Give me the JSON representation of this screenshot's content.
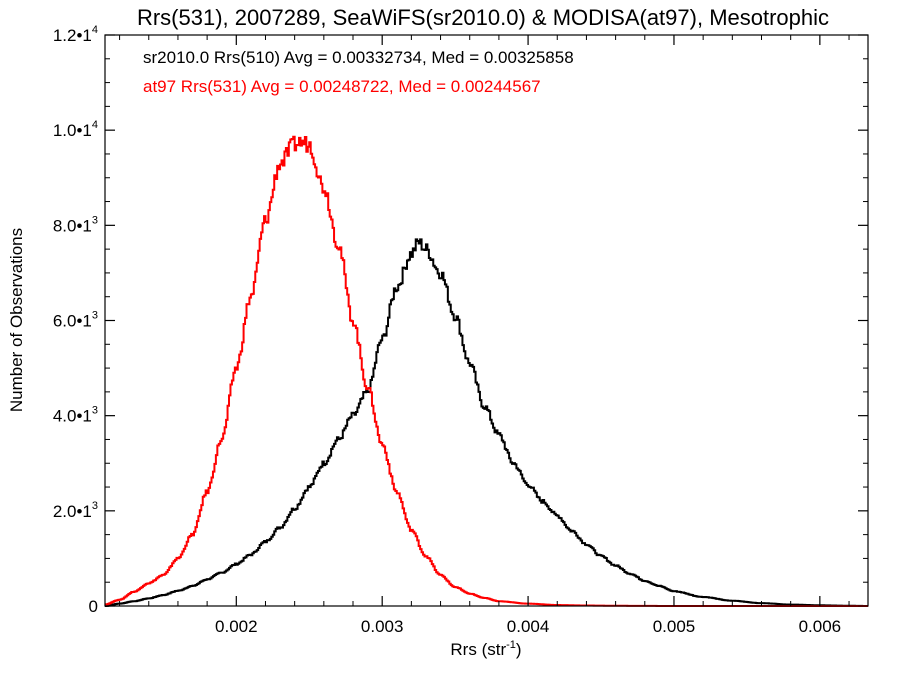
{
  "chart_data": {
    "type": "histogram",
    "title": "Rrs(531), 2007289, SeaWiFS(sr2010.0) & MODISA(at97), Mesotrophic",
    "xlabel": {
      "base": "Rrs (str",
      "sup": "-1",
      "close": ")"
    },
    "ylabel": "Number of Observations",
    "xlim": [
      0.0011,
      0.00633
    ],
    "ylim": [
      0,
      12000
    ],
    "xticks": [
      {
        "value": 0.002,
        "label": "0.002"
      },
      {
        "value": 0.003,
        "label": "0.003"
      },
      {
        "value": 0.004,
        "label": "0.004"
      },
      {
        "value": 0.005,
        "label": "0.005"
      },
      {
        "value": 0.006,
        "label": "0.006"
      }
    ],
    "yticks": [
      {
        "value": 0,
        "mant": "0",
        "exp": ""
      },
      {
        "value": 2000,
        "mant": "2.0•1",
        "exp": "3"
      },
      {
        "value": 4000,
        "mant": "4.0•1",
        "exp": "3"
      },
      {
        "value": 6000,
        "mant": "6.0•1",
        "exp": "3"
      },
      {
        "value": 8000,
        "mant": "8.0•1",
        "exp": "3"
      },
      {
        "value": 10000,
        "mant": "1.0•1",
        "exp": "4"
      },
      {
        "value": 12000,
        "mant": "1.2•1",
        "exp": "4"
      }
    ],
    "annotations": [
      {
        "text": "sr2010.0 Rrs(510) Avg = 0.00332734, Med = 0.00325858",
        "color": "#000000"
      },
      {
        "text": "at97 Rrs(531) Avg = 0.00248722, Med = 0.00244567",
        "color": "#ff0000"
      }
    ],
    "series": [
      {
        "color": "#000000",
        "x": [
          0.0011,
          0.0012,
          0.0013,
          0.0014,
          0.0015,
          0.0016,
          0.0017,
          0.0018,
          0.0019,
          0.002,
          0.0021,
          0.0022,
          0.0023,
          0.0024,
          0.0025,
          0.0026,
          0.0027,
          0.0028,
          0.0029,
          0.003,
          0.0031,
          0.0032,
          0.00325,
          0.0033,
          0.0034,
          0.0035,
          0.0036,
          0.0037,
          0.0038,
          0.0039,
          0.004,
          0.0041,
          0.0042,
          0.0043,
          0.0044,
          0.0045,
          0.0046,
          0.0047,
          0.0048,
          0.0049,
          0.005,
          0.0052,
          0.0054,
          0.0056,
          0.0058,
          0.006,
          0.0062,
          0.00633
        ],
        "y": [
          0,
          50,
          100,
          160,
          230,
          320,
          420,
          560,
          700,
          880,
          1080,
          1350,
          1650,
          2050,
          2500,
          3000,
          3500,
          4000,
          4500,
          5600,
          6700,
          7400,
          7650,
          7500,
          7000,
          6100,
          5100,
          4200,
          3600,
          3000,
          2550,
          2200,
          1900,
          1580,
          1300,
          1050,
          850,
          680,
          530,
          420,
          310,
          190,
          110,
          60,
          30,
          15,
          5,
          0
        ]
      },
      {
        "color": "#ff0000",
        "x": [
          0.0011,
          0.0012,
          0.0013,
          0.0014,
          0.0015,
          0.0016,
          0.0017,
          0.0018,
          0.0019,
          0.002,
          0.0021,
          0.0022,
          0.0023,
          0.0024,
          0.00245,
          0.0025,
          0.0026,
          0.0027,
          0.0028,
          0.0029,
          0.003,
          0.0031,
          0.0032,
          0.0033,
          0.0034,
          0.0035,
          0.0036,
          0.0037,
          0.0038,
          0.004,
          0.0042,
          0.0044,
          0.0046,
          0.0048,
          0.005,
          0.00633
        ],
        "y": [
          30,
          130,
          300,
          480,
          650,
          1000,
          1500,
          2400,
          3500,
          5000,
          6500,
          8100,
          9300,
          9700,
          9750,
          9700,
          8800,
          7600,
          6000,
          4600,
          3400,
          2400,
          1600,
          1050,
          650,
          400,
          260,
          170,
          100,
          50,
          20,
          10,
          5,
          2,
          0,
          0
        ]
      }
    ]
  }
}
